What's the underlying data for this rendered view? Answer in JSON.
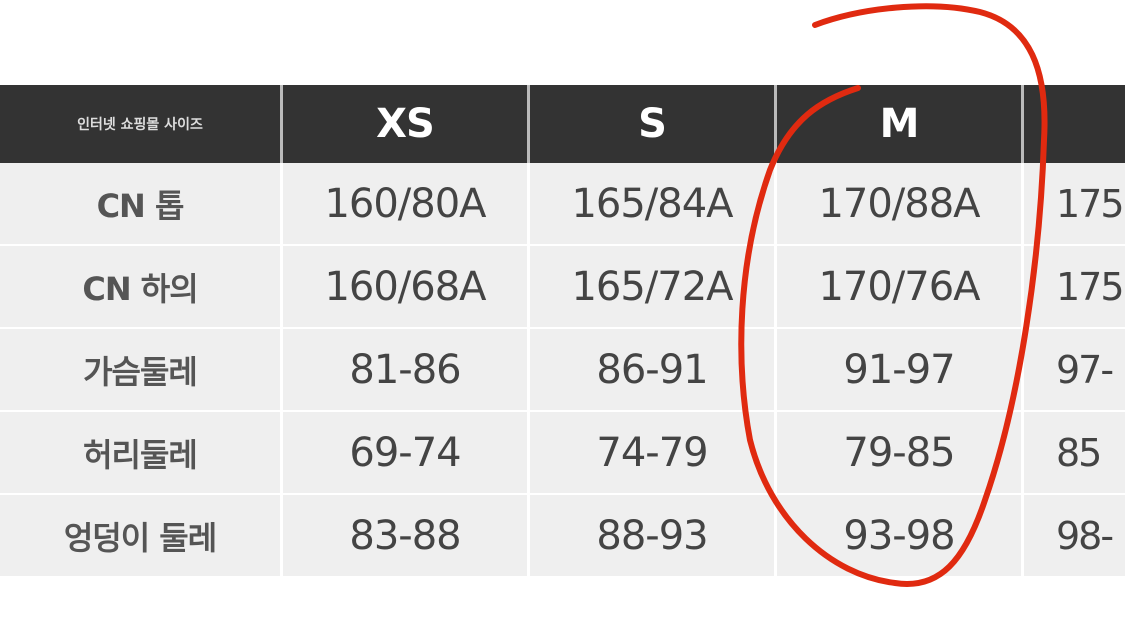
{
  "table": {
    "header": {
      "label": "인터넷 쇼핑몰 사이즈",
      "sizes": [
        "XS",
        "S",
        "M",
        ""
      ]
    },
    "rows": [
      {
        "label": "CN 톱",
        "values": [
          "160/80A",
          "165/84A",
          "170/88A",
          "175"
        ]
      },
      {
        "label": "CN 하의",
        "values": [
          "160/68A",
          "165/72A",
          "170/76A",
          "175"
        ]
      },
      {
        "label": "가슴둘레",
        "values": [
          "81-86",
          "86-91",
          "91-97",
          "97-"
        ]
      },
      {
        "label": "허리둘레",
        "values": [
          "69-74",
          "74-79",
          "79-85",
          "85"
        ]
      },
      {
        "label": "엉덩이 둘레",
        "values": [
          "83-88",
          "88-93",
          "93-98",
          "98-"
        ]
      }
    ]
  },
  "annotation": {
    "color": "#e02a10",
    "highlighted_column": "M"
  }
}
